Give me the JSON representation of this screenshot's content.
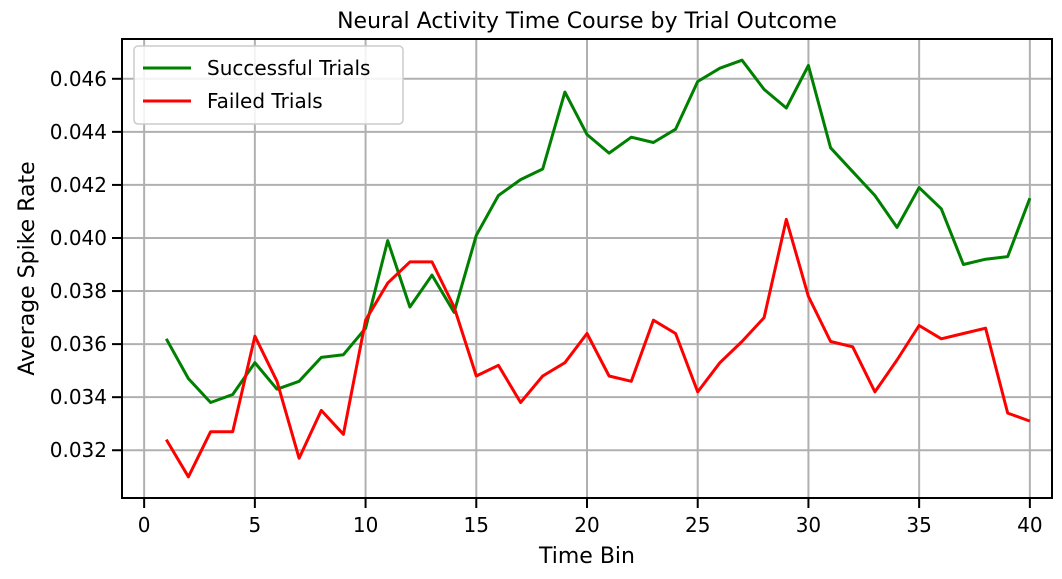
{
  "chart_data": {
    "type": "line",
    "title": "Neural Activity Time Course by Trial Outcome",
    "xlabel": "Time Bin",
    "ylabel": "Average Spike Rate",
    "xlim": [
      -1,
      41
    ],
    "ylim": [
      0.0302,
      0.0475
    ],
    "xticks": [
      0,
      5,
      10,
      15,
      20,
      25,
      30,
      35,
      40
    ],
    "yticks": [
      0.032,
      0.034,
      0.036,
      0.038,
      0.04,
      0.042,
      0.044,
      0.046
    ],
    "ytick_labels": [
      "0.032",
      "0.034",
      "0.036",
      "0.038",
      "0.040",
      "0.042",
      "0.044",
      "0.046"
    ],
    "grid": true,
    "legend_position": "top-left",
    "x": [
      1,
      2,
      3,
      4,
      5,
      6,
      7,
      8,
      9,
      10,
      11,
      12,
      13,
      14,
      15,
      16,
      17,
      18,
      19,
      20,
      21,
      22,
      23,
      24,
      25,
      26,
      27,
      28,
      29,
      30,
      31,
      32,
      33,
      34,
      35,
      36,
      37,
      38,
      39,
      40
    ],
    "series": [
      {
        "name": "Successful Trials",
        "color": "#008000",
        "values": [
          0.0362,
          0.0347,
          0.0338,
          0.0341,
          0.0353,
          0.0343,
          0.0346,
          0.0355,
          0.0356,
          0.0366,
          0.0399,
          0.0374,
          0.0386,
          0.0372,
          0.0401,
          0.0416,
          0.0422,
          0.0426,
          0.0455,
          0.0439,
          0.0432,
          0.0438,
          0.0436,
          0.0441,
          0.0459,
          0.0464,
          0.0467,
          0.0456,
          0.0449,
          0.0465,
          0.0434,
          0.0425,
          0.0416,
          0.0404,
          0.0419,
          0.0411,
          0.039,
          0.0392,
          0.0393,
          0.0415
        ]
      },
      {
        "name": "Failed Trials",
        "color": "#ff0000",
        "values": [
          0.0324,
          0.031,
          0.0327,
          0.0327,
          0.0363,
          0.0346,
          0.0317,
          0.0335,
          0.0326,
          0.0369,
          0.0383,
          0.0391,
          0.0391,
          0.0374,
          0.0348,
          0.0352,
          0.0338,
          0.0348,
          0.0353,
          0.0364,
          0.0348,
          0.0346,
          0.0369,
          0.0364,
          0.0342,
          0.0353,
          0.0361,
          0.037,
          0.0407,
          0.0378,
          0.0361,
          0.0359,
          0.0342,
          0.0354,
          0.0367,
          0.0362,
          0.0364,
          0.0366,
          0.0334,
          0.0331
        ]
      }
    ]
  }
}
